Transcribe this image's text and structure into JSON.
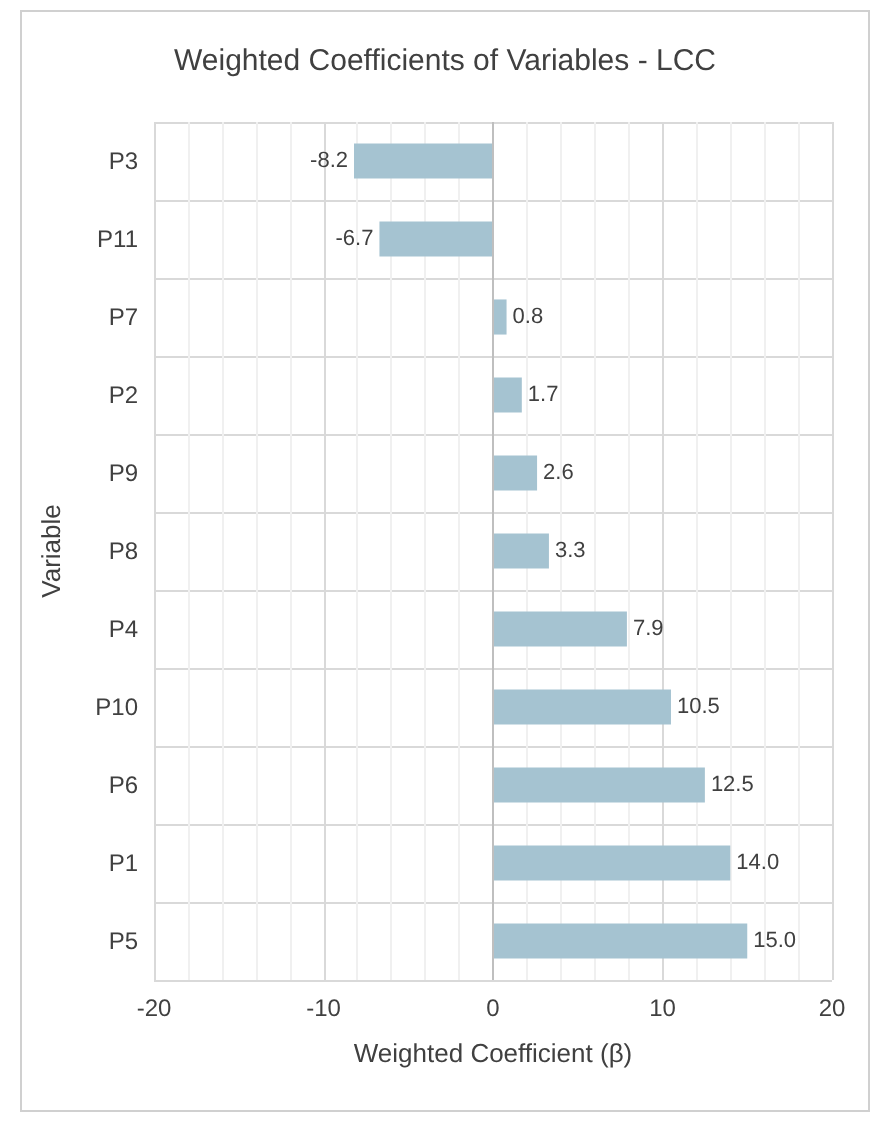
{
  "chart_data": {
    "type": "bar",
    "orientation": "horizontal",
    "title": "Weighted Coefficients of Variables - LCC",
    "xlabel": "Weighted Coefficient (β)",
    "ylabel": "Variable",
    "categories": [
      "P3",
      "P11",
      "P7",
      "P2",
      "P9",
      "P8",
      "P4",
      "P10",
      "P6",
      "P1",
      "P5"
    ],
    "values": [
      -8.2,
      -6.7,
      0.8,
      1.7,
      2.6,
      3.3,
      7.9,
      10.5,
      12.5,
      14.0,
      15.0
    ],
    "value_labels": [
      "-8.2",
      "-6.7",
      "0.8",
      "1.7",
      "2.6",
      "3.3",
      "7.9",
      "10.5",
      "12.5",
      "14.0",
      "15.0"
    ],
    "color": "#a5c3d1",
    "xlim": [
      -20,
      20
    ],
    "xticks": [
      -20,
      -10,
      0,
      10,
      20
    ],
    "grid": true
  }
}
